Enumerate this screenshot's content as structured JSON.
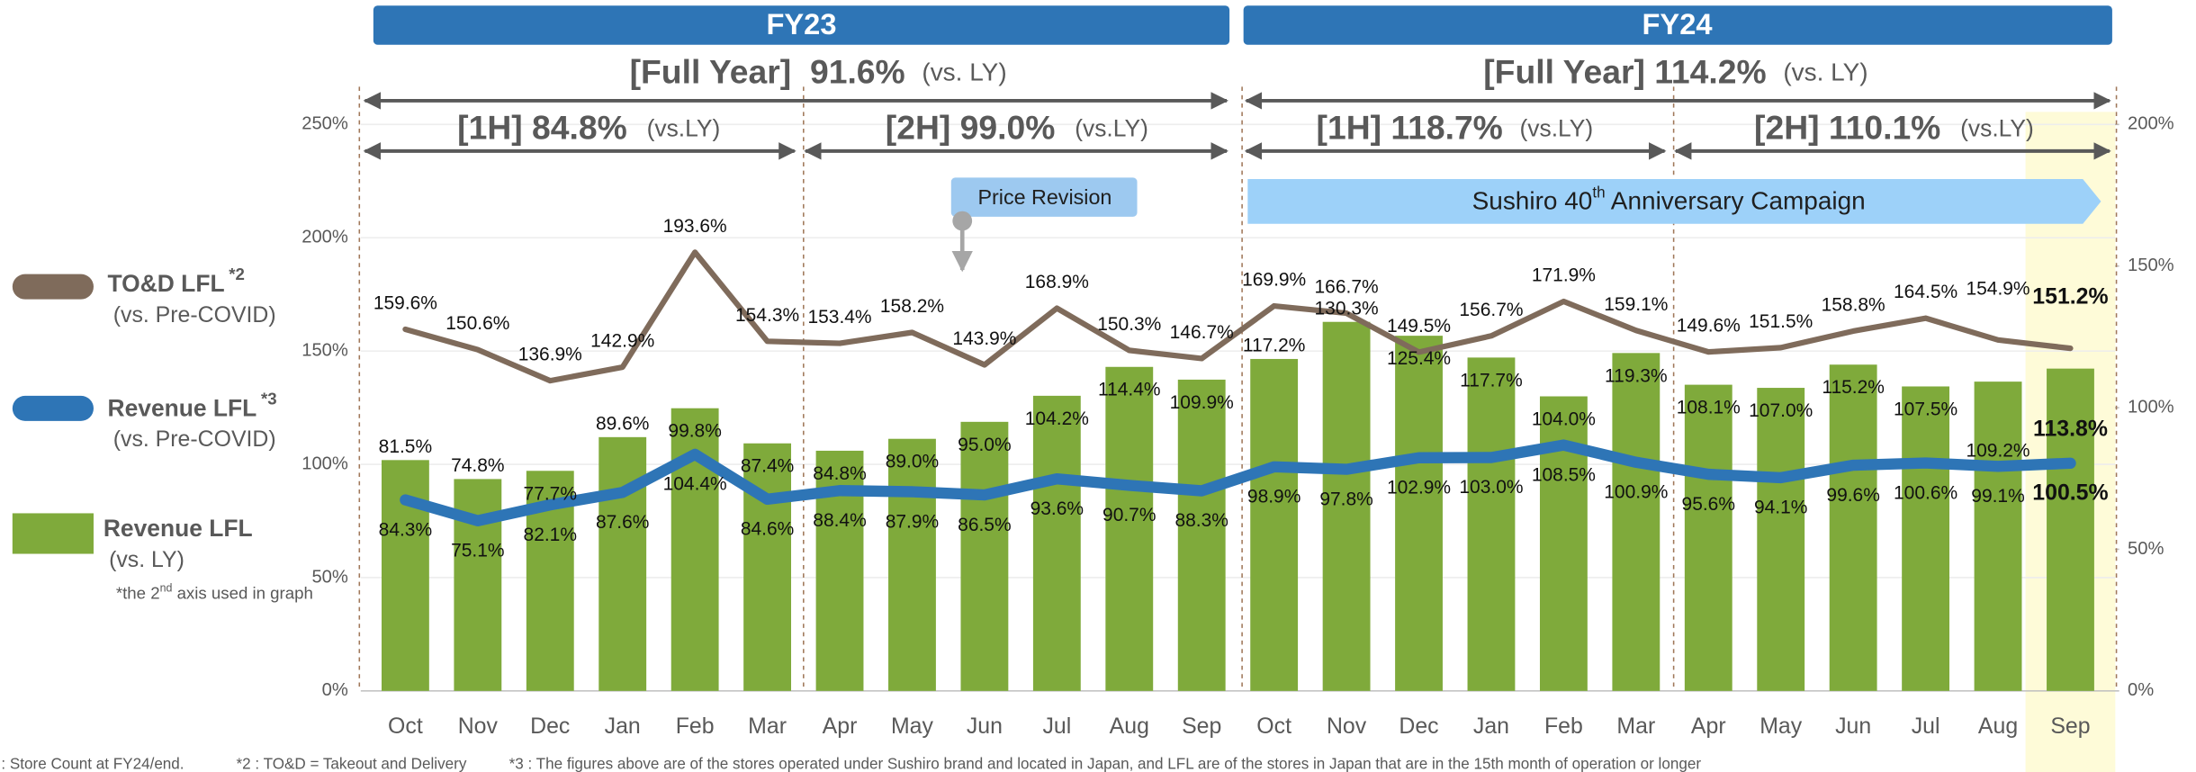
{
  "chart_data": {
    "type": "combo",
    "categories": [
      "Oct",
      "Nov",
      "Dec",
      "Jan",
      "Feb",
      "Mar",
      "Apr",
      "May",
      "Jun",
      "Jul",
      "Aug",
      "Sep",
      "Oct",
      "Nov",
      "Dec",
      "Jan",
      "Feb",
      "Mar",
      "Apr",
      "May",
      "Jun",
      "Jul",
      "Aug",
      "Sep"
    ],
    "periods": [
      {
        "label": "FY23",
        "full_year": "[Full Year]  91.6%",
        "full_year_note": "(vs. LY)",
        "halves": [
          {
            "label": "[1H] 84.8%",
            "note": "(vs.LY)"
          },
          {
            "label": "[2H] 99.0%",
            "note": "(vs.LY)"
          }
        ]
      },
      {
        "label": "FY24",
        "full_year": "[Full Year] 114.2%",
        "full_year_note": "(vs. LY)",
        "halves": [
          {
            "label": "[1H] 118.7%",
            "note": "(vs.LY)"
          },
          {
            "label": "[2H] 110.1%",
            "note": "(vs.LY)"
          }
        ]
      }
    ],
    "annotations": {
      "price_revision": "Price Revision",
      "campaign": [
        "Sushiro 40",
        "th",
        " Anniversary Campaign"
      ]
    },
    "series": [
      {
        "name": "Revenue LFL",
        "subtitle": "(vs. LY)",
        "note": [
          "*the 2",
          "nd",
          " axis used in graph"
        ],
        "type": "bar",
        "axis": "y2",
        "color": "#7faa3b",
        "values": [
          81.5,
          74.8,
          77.7,
          89.6,
          99.8,
          87.4,
          84.8,
          89.0,
          95.0,
          104.2,
          114.4,
          109.9,
          117.2,
          130.3,
          125.4,
          117.7,
          104.0,
          119.3,
          108.1,
          107.0,
          115.2,
          107.5,
          109.2,
          113.8
        ],
        "value_labels": [
          "81.5%",
          "74.8%",
          "77.7%",
          "89.6%",
          "99.8%",
          "87.4%",
          "84.8%",
          "89.0%",
          "95.0%",
          "104.2%",
          "114.4%",
          "109.9%",
          "117.2%",
          "130.3%",
          "125.4%",
          "117.7%",
          "104.0%",
          "119.3%",
          "108.1%",
          "107.0%",
          "115.2%",
          "107.5%",
          "109.2%",
          "113.8%"
        ]
      },
      {
        "name": "TO&D LFL",
        "name_note": "*2",
        "subtitle": "(vs. Pre-COVID)",
        "type": "line",
        "color": "#7f6b5b",
        "values": [
          159.6,
          150.6,
          136.9,
          142.9,
          193.6,
          154.3,
          153.4,
          158.2,
          143.9,
          168.9,
          150.3,
          146.7,
          169.9,
          166.7,
          149.5,
          156.7,
          171.9,
          159.1,
          149.6,
          151.5,
          158.8,
          164.5,
          154.9,
          151.2
        ],
        "value_labels": [
          "159.6%",
          "150.6%",
          "136.9%",
          "142.9%",
          "193.6%",
          "154.3%",
          "153.4%",
          "158.2%",
          "143.9%",
          "168.9%",
          "150.3%",
          "146.7%",
          "169.9%",
          "166.7%",
          "149.5%",
          "156.7%",
          "171.9%",
          "159.1%",
          "149.6%",
          "151.5%",
          "158.8%",
          "164.5%",
          "154.9%",
          "151.2%"
        ]
      },
      {
        "name": "Revenue LFL",
        "name_note": "*3",
        "subtitle": "(vs. Pre-COVID)",
        "type": "line",
        "color": "#2e75b6",
        "values": [
          84.3,
          75.1,
          82.1,
          87.6,
          104.4,
          84.6,
          88.4,
          87.9,
          86.5,
          93.6,
          90.7,
          88.3,
          98.9,
          97.8,
          102.9,
          103.0,
          108.5,
          100.9,
          95.6,
          94.1,
          99.6,
          100.6,
          99.1,
          100.5
        ],
        "value_labels": [
          "84.3%",
          "75.1%",
          "82.1%",
          "87.6%",
          "104.4%",
          "84.6%",
          "88.4%",
          "87.9%",
          "86.5%",
          "93.6%",
          "90.7%",
          "88.3%",
          "98.9%",
          "97.8%",
          "102.9%",
          "103.0%",
          "108.5%",
          "100.9%",
          "95.6%",
          "94.1%",
          "99.6%",
          "100.6%",
          "99.1%",
          "100.5%"
        ]
      }
    ],
    "ylim": [
      0,
      250
    ],
    "yticks": [
      {
        "value": 0,
        "label": "0%"
      },
      {
        "value": 50,
        "label": "50%"
      },
      {
        "value": 100,
        "label": "100%"
      },
      {
        "value": 150,
        "label": "150%"
      },
      {
        "value": 200,
        "label": "200%"
      },
      {
        "value": 250,
        "label": "250%"
      }
    ],
    "y2lim": [
      0,
      200
    ],
    "y2ticks": [
      {
        "value": 0,
        "label": "0%"
      },
      {
        "value": 50,
        "label": "50%"
      },
      {
        "value": 100,
        "label": "100%"
      },
      {
        "value": 150,
        "label": "150%"
      },
      {
        "value": 200,
        "label": "200%"
      }
    ],
    "grid": true,
    "highlight": 23,
    "footnotes": [
      ": Store Count at FY24/end.",
      "*2 : TO&D = Takeout and Delivery",
      "*3 : The figures above are of the stores operated under Sushiro brand and located in Japan, and LFL are of the stores in Japan that are in the 15th month of operation or longer"
    ]
  }
}
